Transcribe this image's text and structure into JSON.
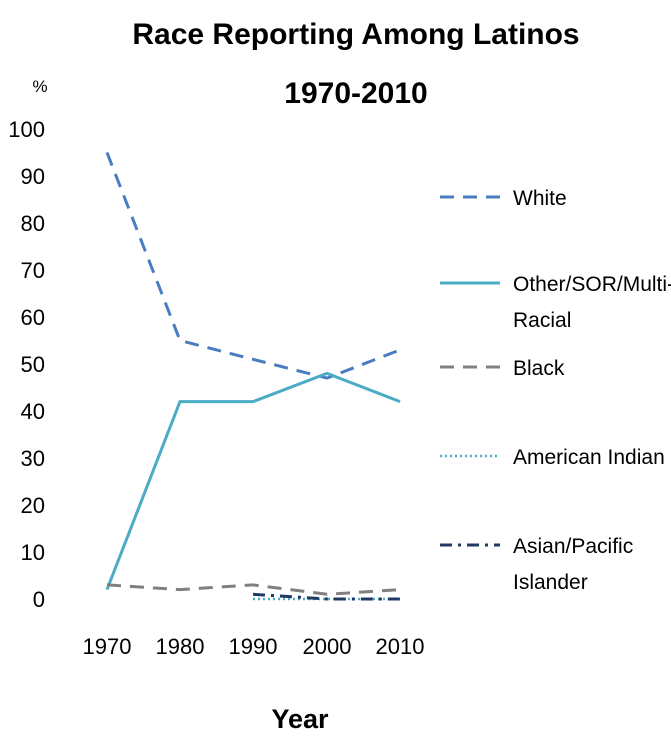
{
  "chart_data": {
    "type": "line",
    "title_lines": [
      "Race Reporting Among Latinos",
      "1970-2010"
    ],
    "ylabel": "%",
    "xlabel": "Year",
    "x": [
      "1970",
      "1980",
      "1990",
      "2000",
      "2010"
    ],
    "ylim": [
      0,
      100
    ],
    "yticks": [
      "0",
      "10",
      "20",
      "30",
      "40",
      "50",
      "60",
      "70",
      "80",
      "90",
      "100"
    ],
    "grid": false,
    "legend_position": "right",
    "series": [
      {
        "name": "White",
        "values": [
          95,
          55,
          51,
          47,
          53
        ],
        "color": "#4a7cc2",
        "style": "dashed"
      },
      {
        "name": "Other/SOR/Multi-Racial",
        "name_lines": [
          "Other/SOR/Multi-",
          "Racial"
        ],
        "values": [
          2,
          42,
          42,
          48,
          42
        ],
        "color": "#4bacc6",
        "style": "solid"
      },
      {
        "name": "Black",
        "values": [
          3,
          2,
          3,
          1,
          2
        ],
        "color": "#808080",
        "style": "dashed"
      },
      {
        "name": "American Indian",
        "values": [
          null,
          null,
          0,
          0,
          0
        ],
        "color": "#4bacc6",
        "style": "dotted"
      },
      {
        "name": "Asian/Pacific Islander",
        "name_lines": [
          "Asian/Pacific",
          "Islander"
        ],
        "values": [
          null,
          null,
          1,
          0,
          0
        ],
        "color": "#1f3864",
        "style": "dashdot"
      }
    ]
  }
}
